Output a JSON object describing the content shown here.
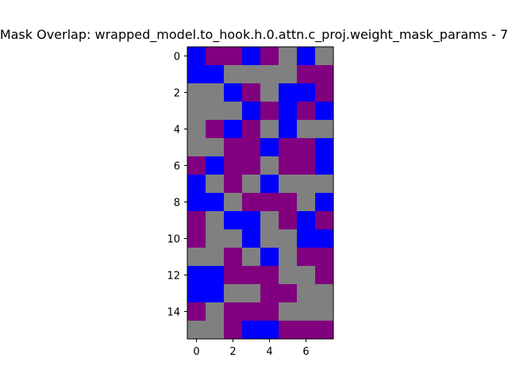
{
  "chart_data": {
    "type": "heatmap",
    "title": "Mask Overlap: wrapped_model.to_hook.h.0.attn.c_proj.weight_mask_params - 7",
    "xlabel": "",
    "ylabel": "",
    "x_ticks": [
      0,
      2,
      4,
      6
    ],
    "y_ticks": [
      0,
      2,
      4,
      6,
      8,
      10,
      12,
      14
    ],
    "xlim": [
      -0.5,
      7.5
    ],
    "ylim": [
      15.5,
      -0.5
    ],
    "grid": false,
    "colors": {
      "B": "#0000ff",
      "P": "#800080",
      "G": "#808080"
    },
    "matrix": [
      [
        "B",
        "P",
        "P",
        "B",
        "P",
        "G",
        "B",
        "G"
      ],
      [
        "B",
        "B",
        "G",
        "G",
        "G",
        "G",
        "P",
        "P"
      ],
      [
        "G",
        "G",
        "B",
        "P",
        "G",
        "B",
        "B",
        "P"
      ],
      [
        "G",
        "G",
        "G",
        "B",
        "P",
        "B",
        "P",
        "B"
      ],
      [
        "G",
        "P",
        "B",
        "P",
        "G",
        "B",
        "G",
        "G"
      ],
      [
        "G",
        "G",
        "P",
        "P",
        "B",
        "P",
        "P",
        "B"
      ],
      [
        "P",
        "B",
        "P",
        "P",
        "G",
        "P",
        "P",
        "B"
      ],
      [
        "B",
        "G",
        "P",
        "G",
        "B",
        "G",
        "G",
        "G"
      ],
      [
        "B",
        "B",
        "G",
        "P",
        "P",
        "P",
        "G",
        "B"
      ],
      [
        "P",
        "G",
        "B",
        "B",
        "G",
        "P",
        "B",
        "P"
      ],
      [
        "P",
        "G",
        "G",
        "B",
        "G",
        "G",
        "B",
        "B"
      ],
      [
        "G",
        "G",
        "P",
        "G",
        "B",
        "G",
        "P",
        "P"
      ],
      [
        "B",
        "B",
        "P",
        "P",
        "P",
        "G",
        "G",
        "P"
      ],
      [
        "B",
        "B",
        "G",
        "G",
        "P",
        "P",
        "G",
        "G"
      ],
      [
        "P",
        "G",
        "P",
        "P",
        "P",
        "G",
        "G",
        "G"
      ],
      [
        "G",
        "G",
        "P",
        "B",
        "B",
        "P",
        "P",
        "P"
      ]
    ]
  }
}
